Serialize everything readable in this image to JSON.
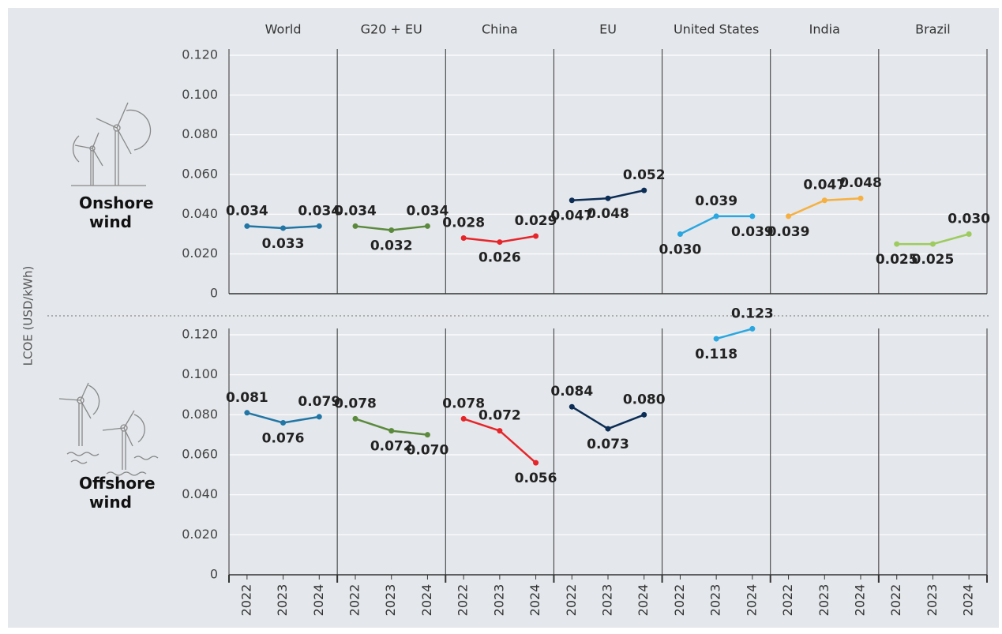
{
  "y_label": "LCOE (USD/kWh)",
  "chart_data": [
    {
      "type": "line",
      "title": "Onshore wind",
      "categories": [
        "2022",
        "2023",
        "2024"
      ],
      "ylim": [
        0,
        0.12
      ],
      "yticks": [
        0,
        {
          "value": 0.02,
          "label": "0.020"
        },
        {
          "value": 0.04,
          "label": "0.040"
        },
        {
          "value": 0.06,
          "label": "0.060"
        },
        {
          "value": 0.08,
          "label": "0.080"
        },
        {
          "value": 0.1,
          "label": "0.100"
        },
        {
          "value": 0.12,
          "label": "0.120"
        }
      ],
      "grid": true,
      "series": [
        {
          "name": "World",
          "color": "#2176a5",
          "values": [
            0.034,
            0.033,
            0.034
          ],
          "value_labels": [
            "0.034",
            "0.033",
            "0.034"
          ]
        },
        {
          "name": "G20 + EU",
          "color": "#5b8a3c",
          "values": [
            0.034,
            0.032,
            0.034
          ],
          "value_labels": [
            "0.034",
            "0.032",
            "0.034"
          ]
        },
        {
          "name": "China",
          "color": "#e6252a",
          "values": [
            0.028,
            0.026,
            0.029
          ],
          "value_labels": [
            "0.028",
            "0.026",
            "0.029"
          ]
        },
        {
          "name": "EU",
          "color": "#0c2d55",
          "values": [
            0.047,
            0.048,
            0.052
          ],
          "value_labels": [
            "0.047",
            "0.048",
            "0.052"
          ]
        },
        {
          "name": "United States",
          "color": "#2aa7e0",
          "values": [
            0.03,
            0.039,
            0.039
          ],
          "value_labels": [
            "0.030",
            "0.039",
            "0.039"
          ]
        },
        {
          "name": "India",
          "color": "#f6b041",
          "values": [
            0.039,
            0.047,
            0.048
          ],
          "value_labels": [
            "0.039",
            "0.047",
            "0.048"
          ]
        },
        {
          "name": "Brazil",
          "color": "#9dcb5e",
          "values": [
            0.025,
            0.025,
            0.03
          ],
          "value_labels": [
            "0.025",
            "0.025",
            "0.030"
          ]
        }
      ]
    },
    {
      "type": "line",
      "title": "Offshore wind",
      "categories": [
        "2022",
        "2023",
        "2024"
      ],
      "ylim": [
        0,
        0.12
      ],
      "yticks": [
        0,
        {
          "value": 0.02,
          "label": "0.020"
        },
        {
          "value": 0.04,
          "label": "0.040"
        },
        {
          "value": 0.06,
          "label": "0.060"
        },
        {
          "value": 0.08,
          "label": "0.080"
        },
        {
          "value": 0.1,
          "label": "0.100"
        },
        {
          "value": 0.12,
          "label": "0.120"
        }
      ],
      "grid": true,
      "series": [
        {
          "name": "World",
          "color": "#2176a5",
          "values": [
            0.081,
            0.076,
            0.079
          ],
          "value_labels": [
            "0.081",
            "0.076",
            "0.079"
          ]
        },
        {
          "name": "G20 + EU",
          "color": "#5b8a3c",
          "values": [
            0.078,
            0.072,
            0.07
          ],
          "value_labels": [
            "0.078",
            "0.072",
            "0.070"
          ]
        },
        {
          "name": "China",
          "color": "#e6252a",
          "values": [
            0.078,
            0.072,
            0.056
          ],
          "value_labels": [
            "0.078",
            "0.072",
            "0.056"
          ]
        },
        {
          "name": "EU",
          "color": "#0c2d55",
          "values": [
            0.084,
            0.073,
            0.08
          ],
          "value_labels": [
            "0.084",
            "0.073",
            "0.080"
          ]
        },
        {
          "name": "United States",
          "color": "#2aa7e0",
          "values": [
            null,
            0.118,
            0.123
          ],
          "value_labels": [
            null,
            "0.118",
            "0.123"
          ]
        },
        {
          "name": "India",
          "color": "#f6b041",
          "values": [
            null,
            null,
            null
          ],
          "value_labels": [
            null,
            null,
            null
          ]
        },
        {
          "name": "Brazil",
          "color": "#9dcb5e",
          "values": [
            null,
            null,
            null
          ],
          "value_labels": [
            null,
            null,
            null
          ]
        }
      ]
    }
  ]
}
